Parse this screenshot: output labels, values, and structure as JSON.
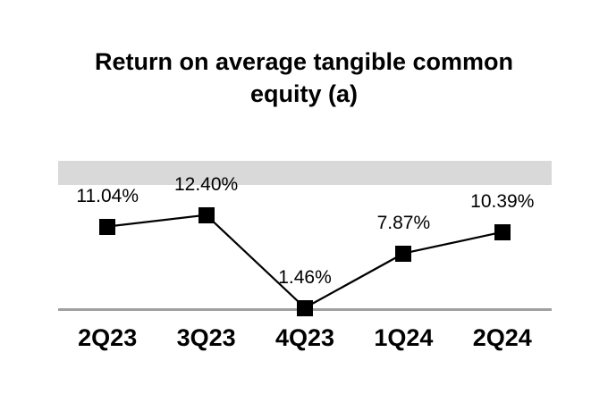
{
  "title": "Return on average tangible common equity (a)",
  "colors": {
    "background": "#ffffff",
    "top_band": "#d9d9d9",
    "axis_line": "#a0a0a0",
    "series": "#000000",
    "text": "#000000"
  },
  "chart_data": {
    "type": "line",
    "title": "Return on average tangible common equity (a)",
    "categories": [
      "2Q23",
      "3Q23",
      "4Q23",
      "1Q24",
      "2Q24"
    ],
    "values": [
      11.04,
      12.4,
      1.46,
      7.87,
      10.39
    ],
    "data_labels": [
      "11.04%",
      "12.40%",
      "1.46%",
      "7.87%",
      "10.39%"
    ],
    "xlabel": "",
    "ylabel": "",
    "ylim": [
      0,
      19
    ],
    "marker": "square",
    "legend": false,
    "grid": false,
    "annotations": {
      "top_band": "shaded gray band across top of plot area",
      "baseline": "gray horizontal axis line at bottom of plot"
    }
  }
}
